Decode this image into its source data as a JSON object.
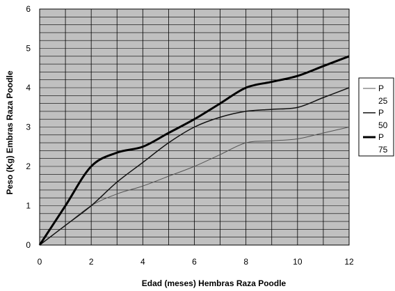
{
  "chart_data": {
    "type": "line",
    "title": "",
    "xlabel": "Edad (meses) Hembras Raza Poodle",
    "ylabel": "Peso (Kg) Embras Raza Poodle",
    "xlim": [
      0,
      12
    ],
    "ylim": [
      0,
      6
    ],
    "x_ticks": [
      0,
      2,
      4,
      6,
      8,
      10,
      12
    ],
    "y_ticks": [
      0,
      1,
      2,
      3,
      4,
      5,
      6
    ],
    "x_gridlines_step": 1,
    "y_gridlines_step": 0.2,
    "grid": true,
    "plot_background": "#c0c0c0",
    "legend_position": "right",
    "series": [
      {
        "name_line1": "P",
        "name_line2": "25",
        "stroke_color": "#555555",
        "stroke_weight": "thin",
        "x": [
          0,
          1,
          2,
          3,
          4,
          5,
          6,
          7,
          8,
          9,
          10,
          11,
          12
        ],
        "y": [
          0,
          0.5,
          1.0,
          1.3,
          1.5,
          1.75,
          2.0,
          2.3,
          2.6,
          2.65,
          2.7,
          2.85,
          3.0
        ]
      },
      {
        "name_line1": "P",
        "name_line2": "50",
        "stroke_color": "#111111",
        "stroke_weight": "medium",
        "x": [
          0,
          1,
          2,
          3,
          4,
          5,
          6,
          7,
          8,
          9,
          10,
          11,
          12
        ],
        "y": [
          0,
          0.5,
          1.0,
          1.6,
          2.1,
          2.6,
          3.0,
          3.25,
          3.4,
          3.45,
          3.5,
          3.75,
          4.0
        ]
      },
      {
        "name_line1": "P",
        "name_line2": "75",
        "stroke_color": "#000000",
        "stroke_weight": "thick",
        "x": [
          0,
          1,
          2,
          3,
          4,
          5,
          6,
          7,
          8,
          9,
          10,
          11,
          12
        ],
        "y": [
          0,
          1.0,
          2.0,
          2.35,
          2.5,
          2.85,
          3.2,
          3.6,
          4.0,
          4.15,
          4.3,
          4.55,
          4.8
        ]
      }
    ]
  }
}
